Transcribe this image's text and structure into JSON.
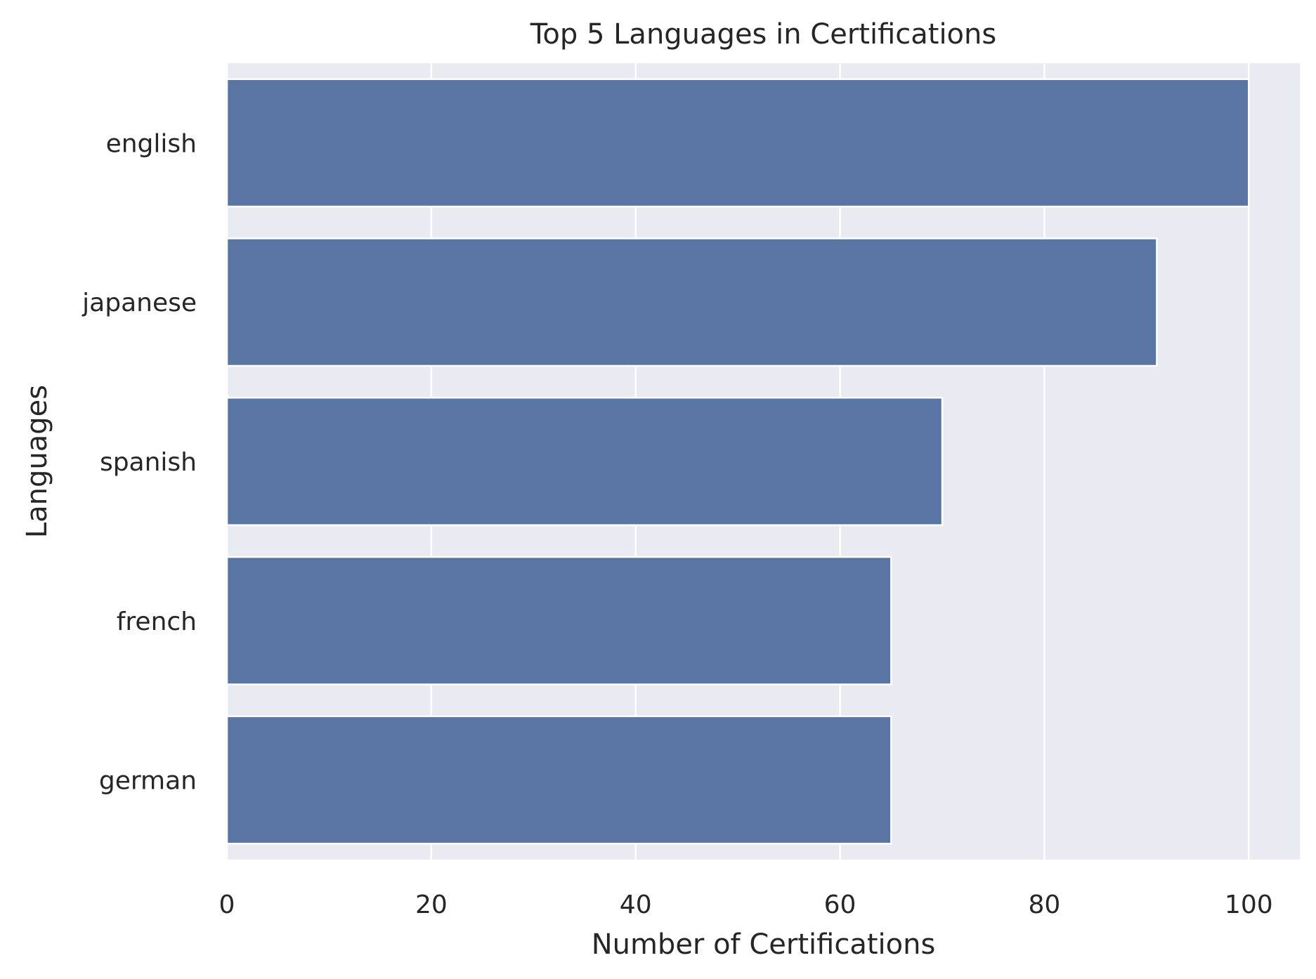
{
  "chart_data": {
    "type": "bar",
    "orientation": "horizontal",
    "title": "Top 5 Languages in Certifications",
    "xlabel": "Number of Certifications",
    "ylabel": "Languages",
    "categories": [
      "english",
      "japanese",
      "spanish",
      "french",
      "german"
    ],
    "values": [
      100,
      91,
      70,
      65,
      65
    ],
    "xlim": [
      0,
      105
    ],
    "xticks": [
      0,
      20,
      40,
      60,
      80,
      100
    ],
    "grid": true,
    "legend": "none",
    "colors": {
      "bar": "#5975a4",
      "plot_background": "#eaeaf2",
      "grid": "#ffffff",
      "text": "#262626"
    }
  }
}
